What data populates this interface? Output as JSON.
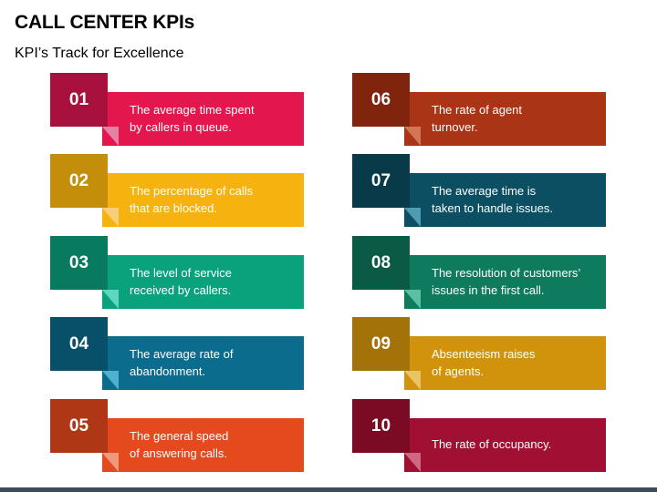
{
  "title": "CALL CENTER KPIs",
  "subtitle": "KPI’s Track for Excellence",
  "items": [
    {
      "number": "01",
      "line1": "The average time spent",
      "line2": "by callers in queue.",
      "bar": "#e3174e",
      "tab": "#a8113d",
      "fold": "#e87fa5"
    },
    {
      "number": "02",
      "line1": "The percentage of calls",
      "line2": "that are blocked.",
      "bar": "#f6b20f",
      "tab": "#c48d0a",
      "fold": "#f6cf78"
    },
    {
      "number": "03",
      "line1": "The level of service",
      "line2": "received by callers.",
      "bar": "#0aa17d",
      "tab": "#077a5f",
      "fold": "#5fd6c0"
    },
    {
      "number": "04",
      "line1": "The average rate of",
      "line2": "abandonment.",
      "bar": "#0b6c8d",
      "tab": "#084f69",
      "fold": "#4fb1cf"
    },
    {
      "number": "05",
      "line1": "The general speed",
      "line2": "of answering calls.",
      "bar": "#e44a1e",
      "tab": "#b03715",
      "fold": "#ee9a78"
    },
    {
      "number": "06",
      "line1": "The rate of agent",
      "line2": "turnover.",
      "bar": "#a93416",
      "tab": "#80240d",
      "fold": "#d07856"
    },
    {
      "number": "07",
      "line1": "The average time is",
      "line2": "taken to handle issues.",
      "bar": "#0c4f63",
      "tab": "#083a49",
      "fold": "#4f9bb1"
    },
    {
      "number": "08",
      "line1": "The resolution of customers’",
      "line2": "issues in the first call.",
      "bar": "#0e7a5e",
      "tab": "#0a5a45",
      "fold": "#5bbfa2"
    },
    {
      "number": "09",
      "line1": "Absenteeism raises",
      "line2": "of agents.",
      "bar": "#d1930b",
      "tab": "#a37208",
      "fold": "#e9c466"
    },
    {
      "number": "10",
      "line1": "The rate of occupancy.",
      "line2": "",
      "bar": "#a10f32",
      "tab": "#7b0a24",
      "fold": "#d06782"
    }
  ]
}
